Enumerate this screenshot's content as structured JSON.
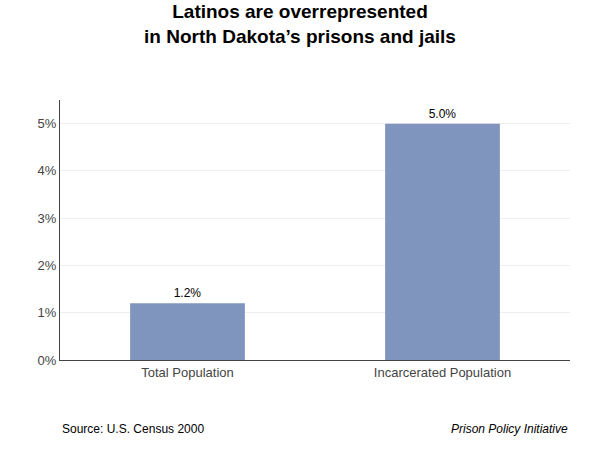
{
  "chart_data": {
    "type": "bar",
    "title": "Latinos are overrepresented",
    "subtitle": "in North Dakota’s prisons and jails",
    "categories": [
      "Total Population",
      "Incarcerated Population"
    ],
    "values": [
      1.2,
      5.0
    ],
    "value_labels": [
      "1.2%",
      "5.0%"
    ],
    "data_labels": true,
    "color": "#7f95be",
    "ylim": [
      0,
      5.5
    ],
    "yticks": [
      {
        "value": 0,
        "label": "0%"
      },
      {
        "value": 1,
        "label": "1%"
      },
      {
        "value": 2,
        "label": "2%"
      },
      {
        "value": 3,
        "label": "3%"
      },
      {
        "value": 4,
        "label": "4%"
      },
      {
        "value": 5,
        "label": "5%"
      }
    ],
    "grid": true,
    "annotations": [
      "Source: U.S. Census 2000",
      "Prison Policy Initiative"
    ]
  }
}
